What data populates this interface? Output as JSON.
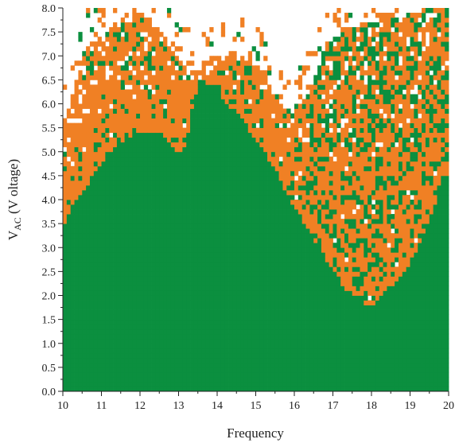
{
  "chart_data": {
    "type": "heatmap",
    "title": "",
    "xlabel": "Frequency",
    "ylabel": {
      "main": "V",
      "subscript": "AC",
      "unit": " (V oltage)"
    },
    "xlim": [
      10,
      20
    ],
    "ylim": [
      0.0,
      8.0
    ],
    "x_ticks": [
      "10",
      "11",
      "12",
      "13",
      "14",
      "15",
      "16",
      "17",
      "18",
      "19",
      "20"
    ],
    "y_ticks": [
      "0.0",
      "0.5",
      "1.0",
      "1.5",
      "2.0",
      "2.5",
      "3.0",
      "3.5",
      "4.0",
      "4.5",
      "5.0",
      "5.5",
      "6.0",
      "6.5",
      "7.0",
      "7.5",
      "8.0"
    ],
    "grid": false,
    "legend": "none",
    "colors": {
      "green": "#0b8f3f",
      "orange": "#f08024",
      "background": "#ffffff"
    },
    "cell_size_data": {
      "dx": 0.1,
      "dy": 0.1
    },
    "green_upper_boundary": [
      [
        10.0,
        3.3
      ],
      [
        10.2,
        3.8
      ],
      [
        10.4,
        4.1
      ],
      [
        10.6,
        4.2
      ],
      [
        10.8,
        4.6
      ],
      [
        11.0,
        4.8
      ],
      [
        11.2,
        5.0
      ],
      [
        11.5,
        5.2
      ],
      [
        11.8,
        5.35
      ],
      [
        12.1,
        5.45
      ],
      [
        12.5,
        5.4
      ],
      [
        12.8,
        5.2
      ],
      [
        13.0,
        4.9
      ],
      [
        13.2,
        5.2
      ],
      [
        13.4,
        6.1
      ],
      [
        13.6,
        6.6
      ],
      [
        13.8,
        6.3
      ],
      [
        14.0,
        6.5
      ],
      [
        14.2,
        6.0
      ],
      [
        14.5,
        5.9
      ],
      [
        14.8,
        5.5
      ],
      [
        15.0,
        5.3
      ],
      [
        15.3,
        4.9
      ],
      [
        15.6,
        4.5
      ],
      [
        15.9,
        4.0
      ],
      [
        16.2,
        3.6
      ],
      [
        16.5,
        3.2
      ],
      [
        16.8,
        2.8
      ],
      [
        17.1,
        2.4
      ],
      [
        17.4,
        2.1
      ],
      [
        17.7,
        1.9
      ],
      [
        17.9,
        1.8
      ],
      [
        18.1,
        1.85
      ],
      [
        18.4,
        2.1
      ],
      [
        18.8,
        2.4
      ],
      [
        19.2,
        3.0
      ],
      [
        19.5,
        3.6
      ],
      [
        19.8,
        4.3
      ],
      [
        20.0,
        4.6
      ]
    ],
    "orange_upper_boundary": [
      [
        10.0,
        5.4
      ],
      [
        10.2,
        6.0
      ],
      [
        10.4,
        6.8
      ],
      [
        10.6,
        7.2
      ],
      [
        10.8,
        7.3
      ],
      [
        11.0,
        7.4
      ],
      [
        11.3,
        7.6
      ],
      [
        11.6,
        7.8
      ],
      [
        11.9,
        7.9
      ],
      [
        12.3,
        7.8
      ],
      [
        12.6,
        7.4
      ],
      [
        12.9,
        7.0
      ],
      [
        13.2,
        6.8
      ],
      [
        13.5,
        6.7
      ],
      [
        13.8,
        6.9
      ],
      [
        14.1,
        7.0
      ],
      [
        14.4,
        7.1
      ],
      [
        14.7,
        7.0
      ],
      [
        15.0,
        6.9
      ],
      [
        15.3,
        6.5
      ],
      [
        15.6,
        6.1
      ],
      [
        15.9,
        5.8
      ],
      [
        16.2,
        6.0
      ],
      [
        16.5,
        6.5
      ],
      [
        16.8,
        7.2
      ],
      [
        17.1,
        7.5
      ],
      [
        17.4,
        7.6
      ],
      [
        17.7,
        7.7
      ],
      [
        18.0,
        7.7
      ],
      [
        18.3,
        7.8
      ],
      [
        18.6,
        7.8
      ],
      [
        19.0,
        7.9
      ],
      [
        19.5,
        8.0
      ],
      [
        20.0,
        8.0
      ]
    ]
  }
}
